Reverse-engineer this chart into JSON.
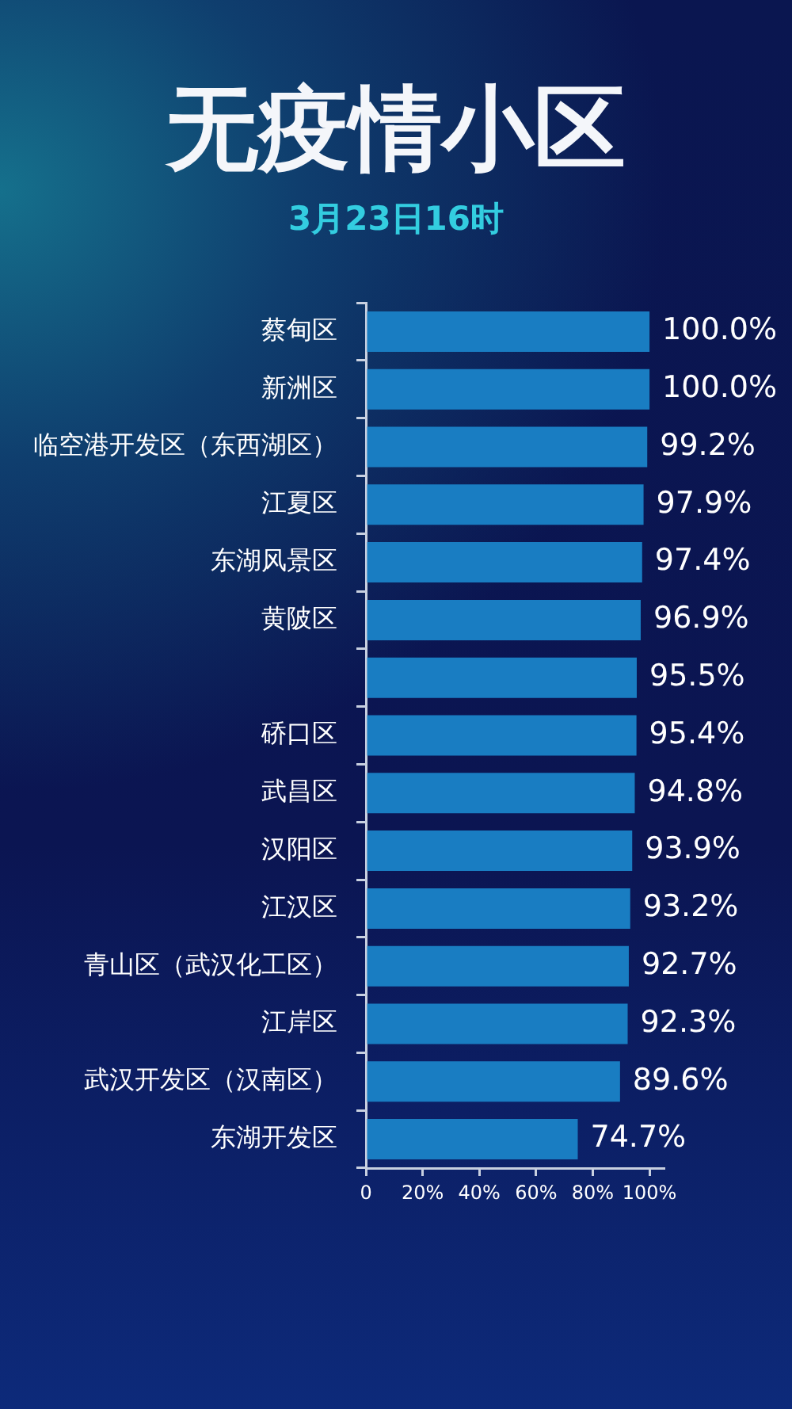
{
  "chart_data": {
    "type": "bar",
    "orientation": "horizontal",
    "title": "无疫情小区",
    "subtitle": "3月23日16时",
    "categories": [
      "蔡甸区",
      "新洲区",
      "临空港开发区（东西湖区）",
      "江夏区",
      "东湖风景区",
      "黄陂区",
      null,
      "硚口区",
      "武昌区",
      "汉阳区",
      "江汉区",
      "青山区（武汉化工区）",
      "江岸区",
      "武汉开发区（汉南区）",
      "东湖开发区"
    ],
    "values": [
      100.0,
      100.0,
      99.2,
      97.9,
      97.4,
      96.9,
      95.5,
      95.4,
      94.8,
      93.9,
      93.2,
      92.7,
      92.3,
      89.6,
      74.7
    ],
    "value_labels": [
      "100.0%",
      "100.0%",
      "99.2%",
      "97.9%",
      "97.4%",
      "96.9%",
      "95.5%",
      "95.4%",
      "94.8%",
      "93.9%",
      "93.2%",
      "92.7%",
      "92.3%",
      "89.6%",
      "74.7%"
    ],
    "color": "#197dc2",
    "xlim": [
      0,
      105
    ],
    "xticks": [
      0,
      {
        "value": 20,
        "label": "20%"
      },
      {
        "value": 40,
        "label": "40%"
      },
      {
        "value": 60,
        "label": "60%"
      },
      {
        "value": 80,
        "label": "80%"
      },
      {
        "value": 100,
        "label": "100%"
      }
    ]
  }
}
